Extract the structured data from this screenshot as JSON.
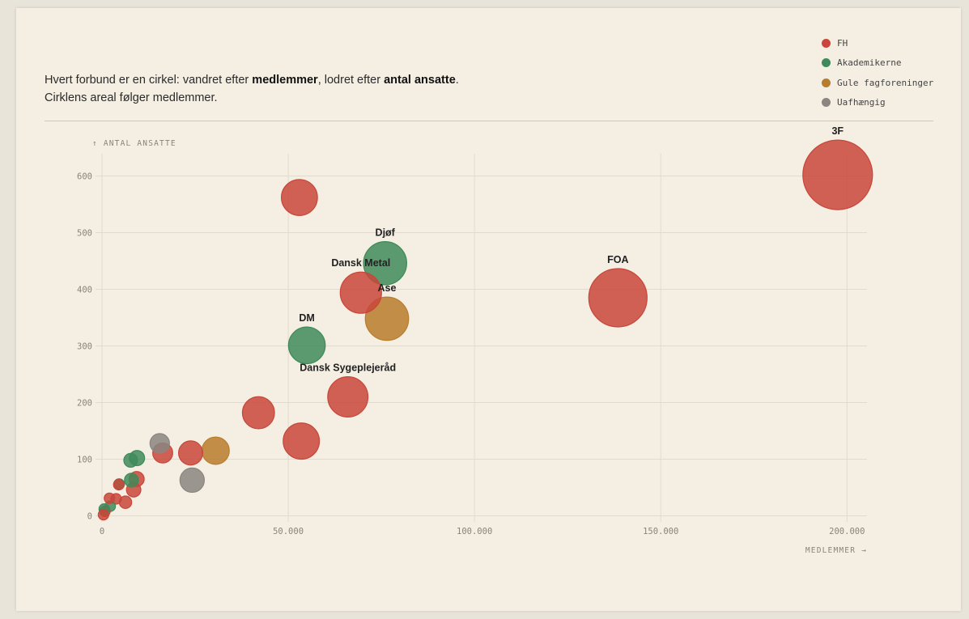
{
  "intro": {
    "line1_prefix": "Hvert forbund er en cirkel: vandret efter ",
    "line1_bold1": "medlemmer",
    "line1_mid": ", lodret efter ",
    "line1_bold2": "antal ansatte",
    "line1_suffix": ".",
    "line2": "Cirklens areal følger medlemmer."
  },
  "legend": [
    {
      "name": "FH",
      "color": "#c8463a"
    },
    {
      "name": "Akademikerne",
      "color": "#3f8a5a"
    },
    {
      "name": "Gule fagforeninger",
      "color": "#b87d2c"
    },
    {
      "name": "Uafhængig",
      "color": "#8a8580"
    }
  ],
  "chart_data": {
    "type": "scatter",
    "xlabel": "MEDLEMMER →",
    "ylabel": "↑ ANTAL ANSATTE",
    "xlim": [
      0,
      206000
    ],
    "ylim": [
      0,
      630
    ],
    "xticks": [
      0,
      50000,
      100000,
      150000,
      200000
    ],
    "xtick_labels": [
      "0",
      "50.000",
      "100.000",
      "150.000",
      "200.000"
    ],
    "yticks": [
      0,
      100,
      200,
      300,
      400,
      500,
      600
    ],
    "ytick_labels": [
      "0",
      "100",
      "200",
      "300",
      "400",
      "500",
      "600"
    ],
    "grid": true,
    "legend_position": "top-right",
    "size_encoding": "area ∝ medlemmer",
    "points": [
      {
        "label": "3F",
        "group": "FH",
        "x": 197500,
        "y": 602
      },
      {
        "label": "FOA",
        "group": "FH",
        "x": 138500,
        "y": 385
      },
      {
        "label": "",
        "group": "FH",
        "x": 53000,
        "y": 562
      },
      {
        "label": "Dansk Metal",
        "group": "FH",
        "x": 69500,
        "y": 394
      },
      {
        "label": "Dansk Sygeplejeråd",
        "group": "FH",
        "x": 66000,
        "y": 210
      },
      {
        "label": "",
        "group": "FH",
        "x": 53500,
        "y": 132
      },
      {
        "label": "",
        "group": "FH",
        "x": 42000,
        "y": 182
      },
      {
        "label": "",
        "group": "FH",
        "x": 23800,
        "y": 111
      },
      {
        "label": "",
        "group": "FH",
        "x": 16300,
        "y": 111
      },
      {
        "label": "",
        "group": "FH",
        "x": 9300,
        "y": 65
      },
      {
        "label": "",
        "group": "FH",
        "x": 8500,
        "y": 46
      },
      {
        "label": "",
        "group": "FH",
        "x": 6300,
        "y": 24
      },
      {
        "label": "",
        "group": "FH",
        "x": 4500,
        "y": 55
      },
      {
        "label": "",
        "group": "FH",
        "x": 3800,
        "y": 30
      },
      {
        "label": "",
        "group": "FH",
        "x": 2000,
        "y": 31
      },
      {
        "label": "",
        "group": "FH",
        "x": 800,
        "y": 8
      },
      {
        "label": "",
        "group": "FH",
        "x": 400,
        "y": 2
      },
      {
        "label": "Djøf",
        "group": "Akademikerne",
        "x": 76000,
        "y": 446
      },
      {
        "label": "DM",
        "group": "Akademikerne",
        "x": 55000,
        "y": 301
      },
      {
        "label": "",
        "group": "Akademikerne",
        "x": 9400,
        "y": 102
      },
      {
        "label": "",
        "group": "Akademikerne",
        "x": 7700,
        "y": 98
      },
      {
        "label": "",
        "group": "Akademikerne",
        "x": 7900,
        "y": 63
      },
      {
        "label": "",
        "group": "Akademikerne",
        "x": 4600,
        "y": 56
      },
      {
        "label": "",
        "group": "Akademikerne",
        "x": 2200,
        "y": 17
      },
      {
        "label": "",
        "group": "Akademikerne",
        "x": 600,
        "y": 12
      },
      {
        "label": "Ase",
        "group": "Gule fagforeninger",
        "x": 76500,
        "y": 348
      },
      {
        "label": "",
        "group": "Gule fagforeninger",
        "x": 30500,
        "y": 115
      },
      {
        "label": "",
        "group": "Uafhængig",
        "x": 15500,
        "y": 128
      },
      {
        "label": "",
        "group": "Uafhængig",
        "x": 24200,
        "y": 63
      }
    ]
  }
}
